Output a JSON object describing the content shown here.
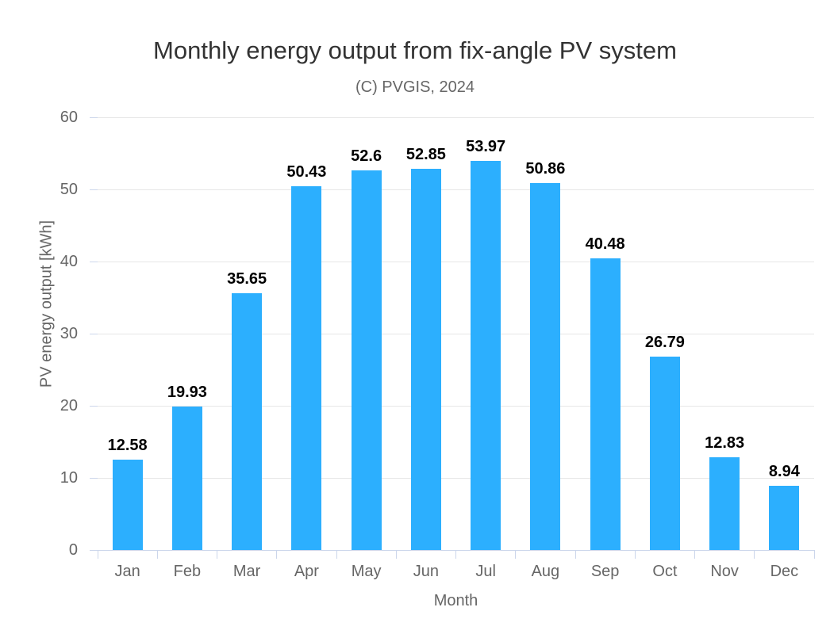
{
  "chart_data": {
    "type": "bar",
    "title": "Monthly energy output from fix-angle PV system",
    "subtitle": "(C) PVGIS, 2024",
    "xlabel": "Month",
    "ylabel": "PV energy output [kWh]",
    "categories": [
      "Jan",
      "Feb",
      "Mar",
      "Apr",
      "May",
      "Jun",
      "Jul",
      "Aug",
      "Sep",
      "Oct",
      "Nov",
      "Dec"
    ],
    "values": [
      12.58,
      19.93,
      35.65,
      50.43,
      52.6,
      52.85,
      53.97,
      50.86,
      40.48,
      26.79,
      12.83,
      8.94
    ],
    "value_labels": [
      "12.58",
      "19.93",
      "35.65",
      "50.43",
      "52.6",
      "52.85",
      "53.97",
      "50.86",
      "40.48",
      "26.79",
      "12.83",
      "8.94"
    ],
    "ylim": [
      0,
      60
    ],
    "yticks": [
      0,
      10,
      20,
      30,
      40,
      50,
      60
    ],
    "grid": true,
    "legend": false,
    "colors": {
      "bar": "#2caffe",
      "gridline": "#e6e6e6",
      "axis_line": "#ccd6eb",
      "tick_label": "#666666",
      "axis_title": "#666666",
      "title": "#333333",
      "subtitle": "#666666",
      "data_label": "#000000"
    }
  }
}
